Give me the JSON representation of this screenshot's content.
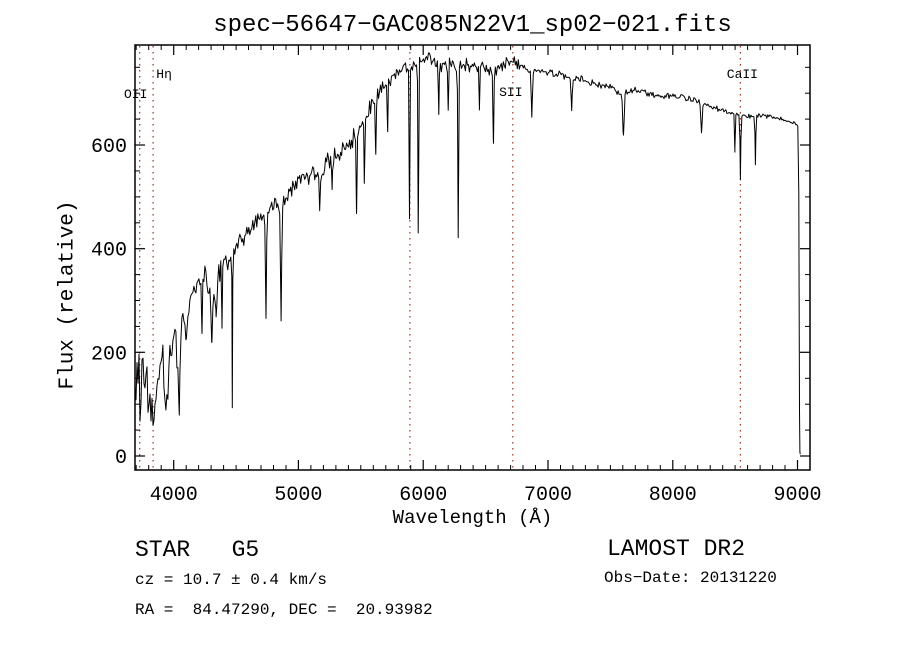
{
  "title": "spec−56647−GAC085N22V1_sp02−021.fits",
  "annotations": {
    "class_label": "STAR   G5",
    "cz": "cz = 10.7 ± 0.4 km/s",
    "radec": "RA =  84.47290, DEC =  20.93982",
    "survey": "LAMOST DR2",
    "obs_date": "Obs−Date: 20131220"
  },
  "chart_data": {
    "type": "line",
    "title": "spec−56647−GAC085N22V1_sp02−021.fits",
    "xlabel": "Wavelength (Å)",
    "ylabel": "Flux (relative)",
    "xlim": [
      3690,
      9100
    ],
    "ylim": [
      -27,
      793
    ],
    "x_ticks": [
      4000,
      5000,
      6000,
      7000,
      8000,
      9000
    ],
    "y_ticks": [
      0,
      200,
      400,
      600
    ],
    "x_minor_step": 100,
    "y_minor_step": 50,
    "grid": false,
    "background": "#ffffff",
    "axis_color": "#000000",
    "line_color": "#000000",
    "marker_line_color": "#9a3426",
    "line_markers": [
      {
        "wavelength": 3727.5,
        "label": "OII",
        "label_dx": -4,
        "label_y": 87
      },
      {
        "wavelength": 3835.4,
        "label": "Hη",
        "label_dx": 11,
        "label_y": 67
      },
      {
        "wavelength": 5893.0,
        "label": "",
        "label_dx": 0,
        "label_y": 0
      },
      {
        "wavelength": 6718.0,
        "label": "SII",
        "label_dx": -2,
        "label_y": 85
      },
      {
        "wavelength": 8542.0,
        "label": "CaII",
        "label_dx": 2,
        "label_y": 67
      }
    ],
    "spectrum": {
      "sample_step_angstrom": 8,
      "continuum": [
        [
          3690,
          150
        ],
        [
          3705,
          120
        ],
        [
          3720,
          160
        ],
        [
          3735,
          110
        ],
        [
          3750,
          170
        ],
        [
          3765,
          130
        ],
        [
          3780,
          150
        ],
        [
          3800,
          100
        ],
        [
          3815,
          90
        ],
        [
          3830,
          85
        ],
        [
          3845,
          100
        ],
        [
          3860,
          120
        ],
        [
          3875,
          150
        ],
        [
          3890,
          170
        ],
        [
          3905,
          195
        ],
        [
          3920,
          180
        ],
        [
          3935,
          95
        ],
        [
          3950,
          130
        ],
        [
          3965,
          170
        ],
        [
          3980,
          210
        ],
        [
          4000,
          245
        ],
        [
          4020,
          215
        ],
        [
          4040,
          140
        ],
        [
          4060,
          250
        ],
        [
          4080,
          280
        ],
        [
          4100,
          270
        ],
        [
          4130,
          305
        ],
        [
          4160,
          320
        ],
        [
          4190,
          335
        ],
        [
          4220,
          340
        ],
        [
          4250,
          345
        ],
        [
          4280,
          320
        ],
        [
          4310,
          300
        ],
        [
          4340,
          325
        ],
        [
          4370,
          350
        ],
        [
          4400,
          365
        ],
        [
          4440,
          380
        ],
        [
          4480,
          395
        ],
        [
          4520,
          408
        ],
        [
          4560,
          420
        ],
        [
          4600,
          433
        ],
        [
          4650,
          447
        ],
        [
          4700,
          460
        ],
        [
          4750,
          470
        ],
        [
          4800,
          482
        ],
        [
          4861,
          470
        ],
        [
          4900,
          500
        ],
        [
          4950,
          512
        ],
        [
          5000,
          525
        ],
        [
          5050,
          536
        ],
        [
          5100,
          545
        ],
        [
          5150,
          548
        ],
        [
          5200,
          560
        ],
        [
          5250,
          570
        ],
        [
          5300,
          578
        ],
        [
          5350,
          590
        ],
        [
          5400,
          602
        ],
        [
          5450,
          616
        ],
        [
          5500,
          636
        ],
        [
          5550,
          660
        ],
        [
          5600,
          685
        ],
        [
          5650,
          702
        ],
        [
          5700,
          716
        ],
        [
          5750,
          730
        ],
        [
          5800,
          742
        ],
        [
          5850,
          750
        ],
        [
          5900,
          752
        ],
        [
          5950,
          756
        ],
        [
          6000,
          764
        ],
        [
          6050,
          766
        ],
        [
          6100,
          758
        ],
        [
          6150,
          753
        ],
        [
          6200,
          754
        ],
        [
          6250,
          750
        ],
        [
          6300,
          753
        ],
        [
          6350,
          756
        ],
        [
          6400,
          750
        ],
        [
          6450,
          752
        ],
        [
          6500,
          748
        ],
        [
          6550,
          740
        ],
        [
          6600,
          746
        ],
        [
          6650,
          754
        ],
        [
          6700,
          762
        ],
        [
          6750,
          758
        ],
        [
          6800,
          753
        ],
        [
          6850,
          744
        ],
        [
          6900,
          744
        ],
        [
          6950,
          744
        ],
        [
          7000,
          741
        ],
        [
          7100,
          736
        ],
        [
          7200,
          730
        ],
        [
          7300,
          724
        ],
        [
          7400,
          717
        ],
        [
          7500,
          710
        ],
        [
          7600,
          698
        ],
        [
          7700,
          706
        ],
        [
          7800,
          700
        ],
        [
          7900,
          694
        ],
        [
          8000,
          695
        ],
        [
          8100,
          690
        ],
        [
          8200,
          685
        ],
        [
          8300,
          675
        ],
        [
          8400,
          668
        ],
        [
          8500,
          660
        ],
        [
          8600,
          655
        ],
        [
          8700,
          658
        ],
        [
          8800,
          654
        ],
        [
          8900,
          648
        ],
        [
          8960,
          643
        ],
        [
          9000,
          638
        ],
        [
          9008,
          632
        ],
        [
          9013,
          320
        ],
        [
          9017,
          10
        ],
        [
          9022,
          3
        ]
      ],
      "absorption_dips": [
        {
          "center": 4045,
          "depth": 90,
          "width": 4
        },
        {
          "center": 4102,
          "depth": 60,
          "width": 5
        },
        {
          "center": 4227,
          "depth": 110,
          "width": 4
        },
        {
          "center": 4305,
          "depth": 85,
          "width": 7
        },
        {
          "center": 4340,
          "depth": 70,
          "width": 5
        },
        {
          "center": 4387,
          "depth": 110,
          "width": 4
        },
        {
          "center": 4470,
          "depth": 300,
          "width": 3
        },
        {
          "center": 4740,
          "depth": 190,
          "width": 5
        },
        {
          "center": 4861,
          "depth": 215,
          "width": 5
        },
        {
          "center": 5170,
          "depth": 80,
          "width": 6
        },
        {
          "center": 5270,
          "depth": 70,
          "width": 5
        },
        {
          "center": 5465,
          "depth": 160,
          "width": 5
        },
        {
          "center": 5528,
          "depth": 120,
          "width": 4
        },
        {
          "center": 5620,
          "depth": 110,
          "width": 4
        },
        {
          "center": 5715,
          "depth": 90,
          "width": 4
        },
        {
          "center": 5890,
          "depth": 290,
          "width": 4
        },
        {
          "center": 5960,
          "depth": 330,
          "width": 4
        },
        {
          "center": 6125,
          "depth": 90,
          "width": 4
        },
        {
          "center": 6200,
          "depth": 80,
          "width": 4
        },
        {
          "center": 6280,
          "depth": 340,
          "width": 4
        },
        {
          "center": 6450,
          "depth": 80,
          "width": 4
        },
        {
          "center": 6563,
          "depth": 140,
          "width": 5
        },
        {
          "center": 6870,
          "depth": 90,
          "width": 6
        },
        {
          "center": 7190,
          "depth": 60,
          "width": 6
        },
        {
          "center": 7605,
          "depth": 80,
          "width": 8
        },
        {
          "center": 8230,
          "depth": 60,
          "width": 6
        },
        {
          "center": 8498,
          "depth": 70,
          "width": 4
        },
        {
          "center": 8542,
          "depth": 125,
          "width": 4
        },
        {
          "center": 8662,
          "depth": 95,
          "width": 4
        }
      ],
      "noise_segments": [
        [
          3690,
          3780,
          70
        ],
        [
          3780,
          4000,
          45
        ],
        [
          4000,
          4400,
          32
        ],
        [
          4400,
          5000,
          24
        ],
        [
          5000,
          5600,
          22
        ],
        [
          5600,
          6800,
          15
        ],
        [
          6800,
          7600,
          9
        ],
        [
          7600,
          8400,
          7
        ],
        [
          8400,
          9005,
          5
        ],
        [
          9005,
          9030,
          2
        ]
      ]
    }
  }
}
